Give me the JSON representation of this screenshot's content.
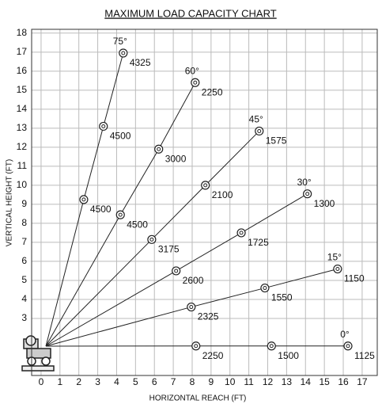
{
  "chart_data": {
    "type": "scatter",
    "title": "MAXIMUM LOAD CAPACITY CHART",
    "xlabel": "HORIZONTAL REACH (FT)",
    "ylabel": "VERTICAL HEIGHT (FT)",
    "xlim": [
      -0.5,
      17.8
    ],
    "ylim": [
      0,
      18.2
    ],
    "xticks": [
      0,
      1,
      2,
      3,
      4,
      5,
      6,
      7,
      8,
      9,
      10,
      11,
      12,
      13,
      14,
      15,
      16,
      17
    ],
    "yticks": [
      3,
      4,
      5,
      6,
      7,
      8,
      9,
      10,
      11,
      12,
      13,
      14,
      15,
      16,
      17,
      18
    ],
    "grid": true,
    "series": [
      {
        "name": "75°",
        "color": "#222",
        "x": [
          2.26,
          3.3,
          4.35
        ],
        "values": [
          9.25,
          13.1,
          16.95
        ],
        "loads": [
          4500,
          4500,
          4325
        ]
      },
      {
        "name": "60°",
        "color": "#222",
        "x": [
          4.2,
          6.23,
          8.16
        ],
        "values": [
          8.45,
          11.9,
          15.4
        ],
        "loads": [
          4500,
          3000,
          2250
        ]
      },
      {
        "name": "45°",
        "color": "#222",
        "x": [
          5.86,
          8.7,
          11.55
        ],
        "values": [
          7.15,
          10.0,
          12.85
        ],
        "loads": [
          3175,
          2100,
          1575
        ]
      },
      {
        "name": "30°",
        "color": "#222",
        "x": [
          7.15,
          10.6,
          14.1
        ],
        "values": [
          5.5,
          7.5,
          9.55
        ],
        "loads": [
          2600,
          1725,
          1300
        ]
      },
      {
        "name": "15°",
        "color": "#222",
        "x": [
          7.95,
          11.85,
          15.7
        ],
        "values": [
          3.6,
          4.6,
          5.6
        ],
        "loads": [
          2325,
          1550,
          1150
        ]
      },
      {
        "name": "0°",
        "color": "#222",
        "x": [
          8.2,
          12.2,
          16.25
        ],
        "values": [
          1.55,
          1.55,
          1.55
        ],
        "loads": [
          2250,
          1500,
          1125
        ]
      }
    ]
  }
}
